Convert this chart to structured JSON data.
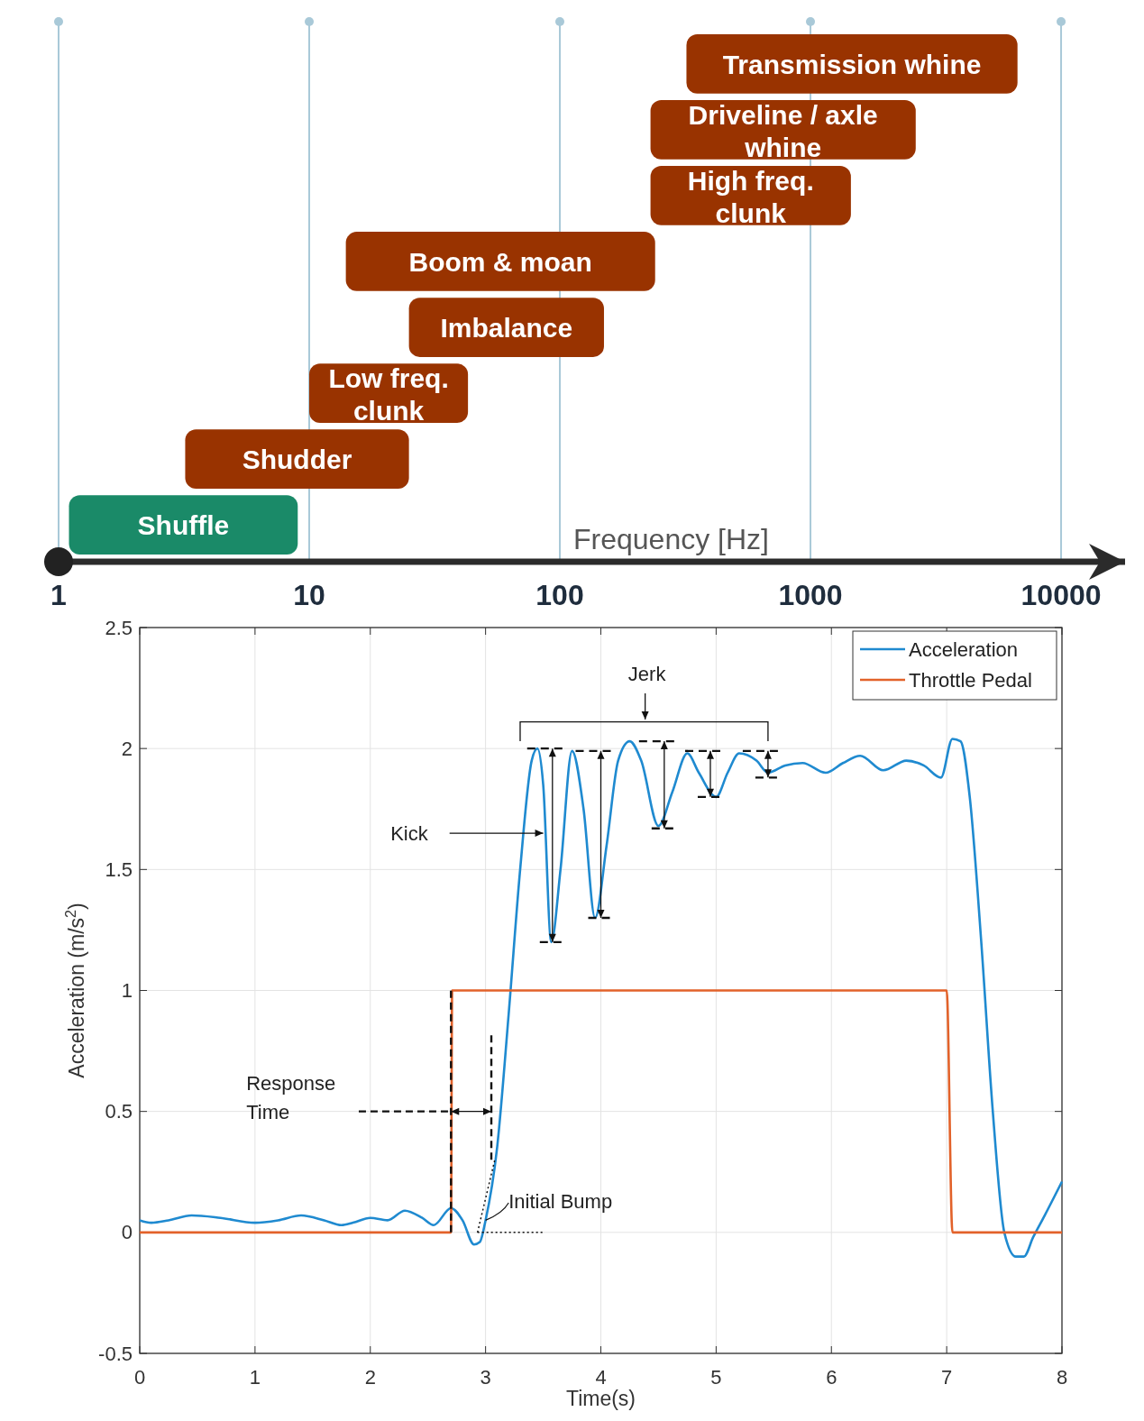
{
  "chart_data": [
    {
      "type": "bar",
      "orientation": "horizontal",
      "log": "x",
      "xlabel": "Frequency [Hz]",
      "xlim": [
        1,
        18000
      ],
      "xticks": [
        1,
        10,
        100,
        1000,
        10000
      ],
      "grid": "x",
      "categories": [
        "Transmission whine",
        "Driveline / axle whine",
        "High freq. clunk",
        "Boom & moan",
        "Imbalance",
        "Low freq. clunk",
        "Shudder",
        "Shuffle"
      ],
      "base": [
        320,
        230,
        230,
        14,
        25,
        10,
        3.2,
        1.1
      ],
      "values": [
        6380,
        2400,
        1220,
        226,
        125,
        33,
        21.8,
        7.9
      ],
      "colors": [
        "#993300",
        "#993300",
        "#993300",
        "#993300",
        "#993300",
        "#993300",
        "#993300",
        "#1a8a68"
      ]
    },
    {
      "type": "line",
      "xlabel": "Time(s)",
      "ylabel": "Acceleration (m/s$^{2}$)",
      "xlim": [
        0,
        8
      ],
      "ylim": [
        -0.5,
        2.5
      ],
      "xticks": [
        0,
        1,
        2,
        3,
        4,
        5,
        6,
        7,
        8
      ],
      "yticks": [
        -0.5,
        0,
        0.5,
        1,
        1.5,
        2,
        2.5
      ],
      "grid": true,
      "legend": "top right",
      "marker": "none",
      "line_style": "solid",
      "series": [
        {
          "name": "Acceleration",
          "color": "#1f8ad0",
          "x": [
            0,
            0.1,
            0.25,
            0.45,
            0.7,
            1.0,
            1.2,
            1.4,
            1.6,
            1.75,
            1.85,
            2.0,
            2.15,
            2.3,
            2.45,
            2.55,
            2.7,
            2.8,
            2.9,
            2.95,
            3.0,
            3.1,
            3.2,
            3.3,
            3.4,
            3.45,
            3.5,
            3.57,
            3.65,
            3.75,
            3.85,
            3.95,
            4.05,
            4.15,
            4.25,
            4.35,
            4.5,
            4.62,
            4.75,
            4.85,
            5.0,
            5.1,
            5.2,
            5.35,
            5.45,
            5.6,
            5.75,
            5.95,
            6.1,
            6.25,
            6.45,
            6.65,
            6.8,
            6.95,
            7.05,
            7.12,
            7.2,
            7.3,
            7.4,
            7.5,
            7.6,
            7.67,
            7.75,
            7.85,
            8.0
          ],
          "values": [
            0.05,
            0.04,
            0.05,
            0.07,
            0.06,
            0.04,
            0.05,
            0.07,
            0.05,
            0.03,
            0.04,
            0.06,
            0.05,
            0.09,
            0.06,
            0.03,
            0.1,
            0.05,
            -0.05,
            -0.04,
            0.05,
            0.35,
            0.9,
            1.5,
            1.95,
            2.0,
            1.85,
            1.2,
            1.5,
            1.99,
            1.75,
            1.3,
            1.6,
            1.95,
            2.03,
            1.95,
            1.68,
            1.82,
            1.98,
            1.9,
            1.8,
            1.9,
            1.98,
            1.95,
            1.9,
            1.93,
            1.94,
            1.9,
            1.94,
            1.97,
            1.91,
            1.95,
            1.93,
            1.88,
            2.04,
            2.03,
            1.8,
            1.2,
            0.5,
            0.0,
            -0.1,
            -0.1,
            -0.02,
            0.07,
            0.21
          ]
        },
        {
          "name": "Throttle Pedal",
          "color": "#e2622a",
          "x": [
            0,
            2.7,
            2.71,
            7.0,
            7.05,
            8
          ],
          "values": [
            0,
            0,
            1,
            1,
            0,
            0
          ]
        }
      ],
      "annotations": [
        "Jerk",
        {
          "text": "Kick",
          "x": 3.5,
          "y": 1.65
        },
        "Response Time",
        {
          "text": "Initial Bump",
          "x": 3.0,
          "y": 0.05
        }
      ]
    }
  ]
}
